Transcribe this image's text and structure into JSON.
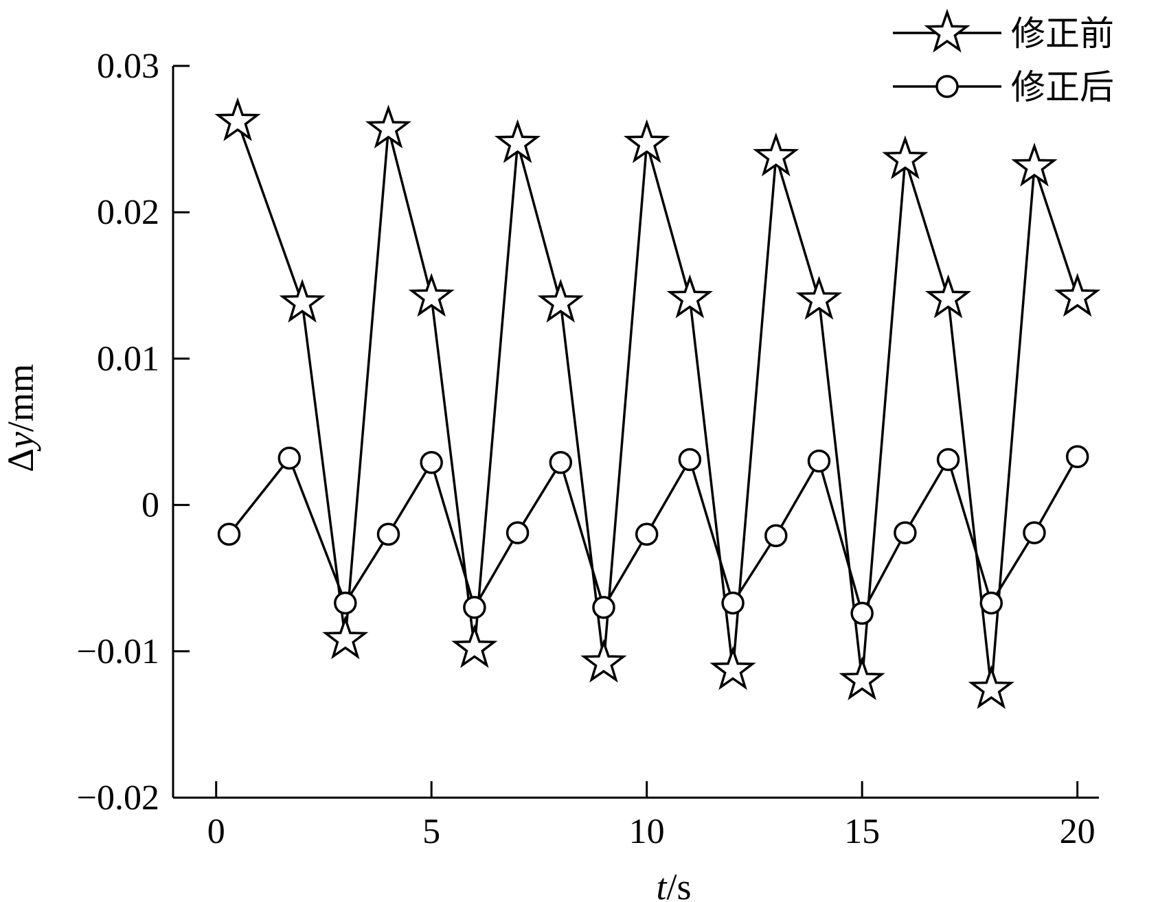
{
  "chart_data": {
    "type": "line",
    "xlabel": "t/s",
    "ylabel": "Δy/mm",
    "xlim": [
      -1.0,
      20.5
    ],
    "ylim": [
      -0.02,
      0.03
    ],
    "xticks": [
      0,
      5,
      10,
      15,
      20
    ],
    "xtick_labels": [
      "0",
      "5",
      "10",
      "15",
      "20"
    ],
    "yticks": [
      -0.02,
      -0.01,
      0,
      0.01,
      0.02,
      0.03
    ],
    "ytick_labels": [
      "−0.02",
      "−0.01",
      "0",
      "0.01",
      "0.02",
      "0.03"
    ],
    "grid": false,
    "legend_position": "top-right",
    "series": [
      {
        "name": "修正前",
        "marker": "star",
        "x": [
          0.5,
          2,
          3,
          4,
          5,
          6,
          7,
          8,
          9,
          10,
          11,
          12,
          13,
          14,
          15,
          16,
          17,
          18,
          19,
          20
        ],
        "y": [
          0.0262,
          0.0138,
          -0.0092,
          0.0257,
          0.0142,
          -0.0098,
          0.0247,
          0.0138,
          -0.0108,
          0.0247,
          0.0141,
          -0.0113,
          0.0238,
          0.014,
          -0.012,
          0.0236,
          0.0141,
          -0.0126,
          0.0231,
          0.0142
        ]
      },
      {
        "name": "修正后",
        "marker": "circle",
        "x": [
          0.3,
          1.7,
          3,
          4,
          5,
          6,
          7,
          8,
          9,
          10,
          11,
          12,
          13,
          14,
          15,
          16,
          17,
          18,
          19,
          20
        ],
        "y": [
          -0.002,
          0.0032,
          -0.0067,
          -0.002,
          0.0029,
          -0.007,
          -0.0019,
          0.0029,
          -0.007,
          -0.002,
          0.0031,
          -0.0067,
          -0.0021,
          0.003,
          -0.0074,
          -0.0019,
          0.0031,
          -0.0067,
          -0.0019,
          0.0033
        ]
      }
    ],
    "colors": {
      "line": "#000000",
      "marker_fill": "#ffffff"
    }
  }
}
